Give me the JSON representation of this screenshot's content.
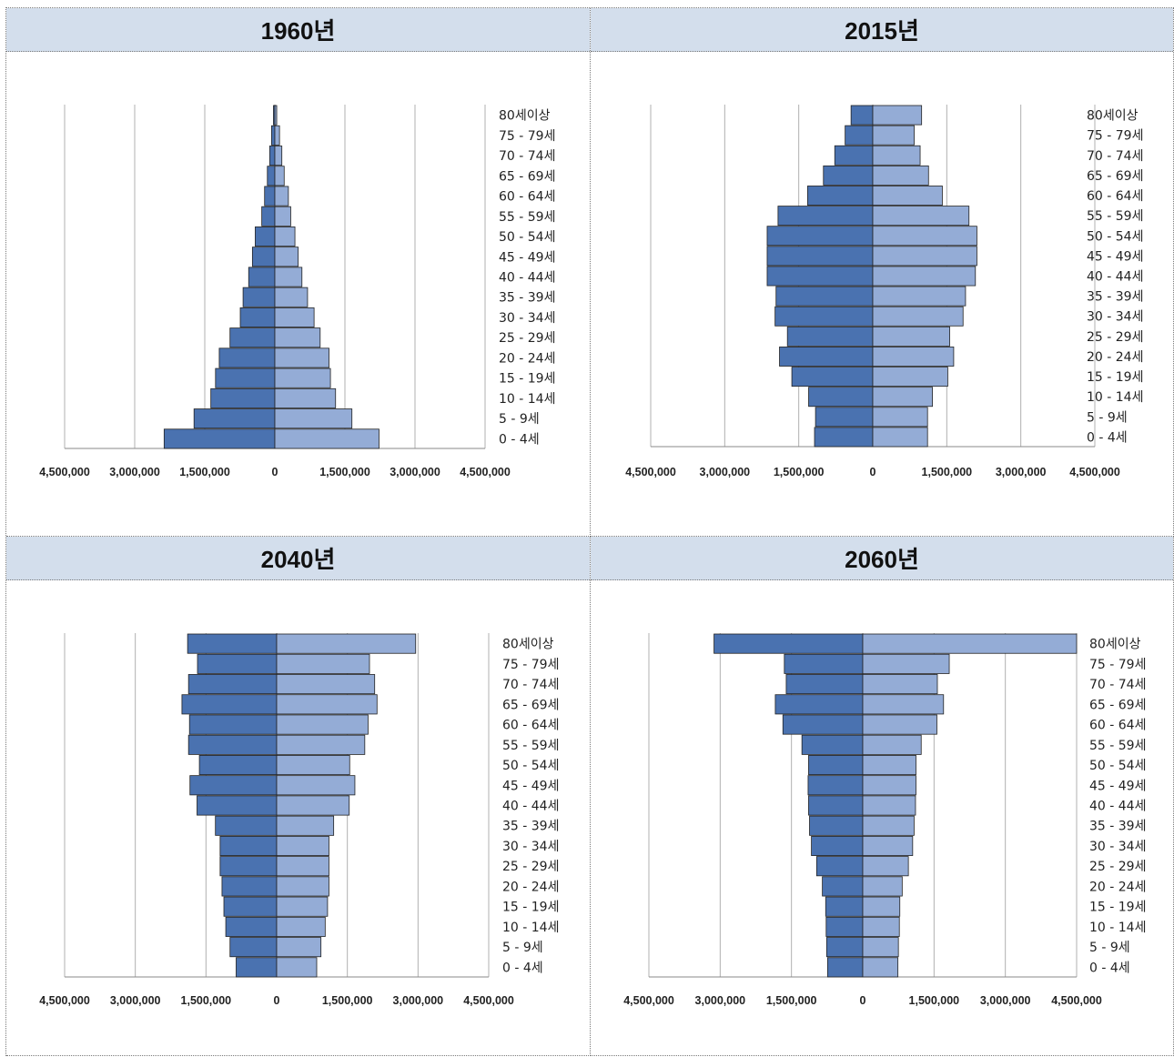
{
  "age_groups": [
    "0 - 4세",
    "5 - 9세",
    "10 - 14세",
    "15 - 19세",
    "20 - 24세",
    "25 - 29세",
    "30 - 34세",
    "35 - 39세",
    "40 - 44세",
    "45 - 49세",
    "50 - 54세",
    "55 - 59세",
    "60 - 64세",
    "65 - 69세",
    "70 - 74세",
    "75 - 79세",
    "80세이상"
  ],
  "x_ticks": [
    "4,500,000",
    "3,000,000",
    "1,500,000",
    "0",
    "1,500,000",
    "3,000,000",
    "4,500,000"
  ],
  "colors": {
    "male": "#4a72b0",
    "female": "#94acd6",
    "header_bg": "#d3deec",
    "grid": "#b0b0b0"
  },
  "chart_data": [
    {
      "type": "bar",
      "title": "1960년",
      "categories": [
        "0 - 4세",
        "5 - 9세",
        "10 - 14세",
        "15 - 19세",
        "20 - 24세",
        "25 - 29세",
        "30 - 34세",
        "35 - 39세",
        "40 - 44세",
        "45 - 49세",
        "50 - 54세",
        "55 - 59세",
        "60 - 64세",
        "65 - 69세",
        "70 - 74세",
        "75 - 79세",
        "80세이상"
      ],
      "xlim": [
        -4500000,
        4500000
      ],
      "series": [
        {
          "values": [
            -2370000,
            -1730000,
            -1370000,
            -1270000,
            -1190000,
            -960000,
            -740000,
            -680000,
            -560000,
            -480000,
            -420000,
            -280000,
            -220000,
            -160000,
            -110000,
            -70000,
            -30000
          ]
        },
        {
          "values": [
            2230000,
            1650000,
            1300000,
            1190000,
            1160000,
            970000,
            840000,
            700000,
            580000,
            500000,
            430000,
            340000,
            290000,
            200000,
            150000,
            100000,
            40000
          ]
        }
      ]
    },
    {
      "type": "bar",
      "title": "2015년",
      "categories": [
        "0 - 4세",
        "5 - 9세",
        "10 - 14세",
        "15 - 19세",
        "20 - 24세",
        "25 - 29세",
        "30 - 34세",
        "35 - 39세",
        "40 - 44세",
        "45 - 49세",
        "50 - 54세",
        "55 - 59세",
        "60 - 64세",
        "65 - 69세",
        "70 - 74세",
        "75 - 79세",
        "80세이상"
      ],
      "xlim": [
        -4500000,
        4500000
      ],
      "series": [
        {
          "values": [
            -1180000,
            -1160000,
            -1300000,
            -1640000,
            -1890000,
            -1730000,
            -1980000,
            -1960000,
            -2140000,
            -2140000,
            -2140000,
            -1920000,
            -1320000,
            -1000000,
            -770000,
            -560000,
            -440000
          ]
        },
        {
          "values": [
            1110000,
            1110000,
            1210000,
            1520000,
            1640000,
            1560000,
            1830000,
            1880000,
            2080000,
            2110000,
            2110000,
            1950000,
            1410000,
            1130000,
            960000,
            840000,
            990000
          ]
        }
      ]
    },
    {
      "type": "bar",
      "title": "2040년",
      "categories": [
        "0 - 4세",
        "5 - 9세",
        "10 - 14세",
        "15 - 19세",
        "20 - 24세",
        "25 - 29세",
        "30 - 34세",
        "35 - 39세",
        "40 - 44세",
        "45 - 49세",
        "50 - 54세",
        "55 - 59세",
        "60 - 64세",
        "65 - 69세",
        "70 - 74세",
        "75 - 79세",
        "80세이상"
      ],
      "xlim": [
        -4500000,
        4500000
      ],
      "series": [
        {
          "values": [
            -860000,
            -990000,
            -1080000,
            -1120000,
            -1160000,
            -1200000,
            -1200000,
            -1300000,
            -1690000,
            -1840000,
            -1640000,
            -1870000,
            -1850000,
            -2010000,
            -1870000,
            -1680000,
            -1890000
          ]
        },
        {
          "values": [
            850000,
            940000,
            1030000,
            1080000,
            1110000,
            1110000,
            1110000,
            1210000,
            1540000,
            1660000,
            1550000,
            1870000,
            1940000,
            2130000,
            2080000,
            1970000,
            2950000
          ]
        }
      ]
    },
    {
      "type": "bar",
      "title": "2060년",
      "categories": [
        "0 - 4세",
        "5 - 9세",
        "10 - 14세",
        "15 - 19세",
        "20 - 24세",
        "25 - 29세",
        "30 - 34세",
        "35 - 39세",
        "40 - 44세",
        "45 - 49세",
        "50 - 54세",
        "55 - 59세",
        "60 - 64세",
        "65 - 69세",
        "70 - 74세",
        "75 - 79세",
        "80세이상"
      ],
      "xlim": [
        -4500000,
        4500000
      ],
      "series": [
        {
          "values": [
            -740000,
            -760000,
            -770000,
            -780000,
            -850000,
            -970000,
            -1080000,
            -1120000,
            -1140000,
            -1150000,
            -1140000,
            -1280000,
            -1680000,
            -1840000,
            -1610000,
            -1650000,
            -3130000
          ]
        },
        {
          "values": [
            740000,
            750000,
            770000,
            780000,
            830000,
            960000,
            1050000,
            1080000,
            1110000,
            1120000,
            1120000,
            1230000,
            1560000,
            1700000,
            1570000,
            1820000,
            4500000
          ]
        }
      ]
    }
  ]
}
